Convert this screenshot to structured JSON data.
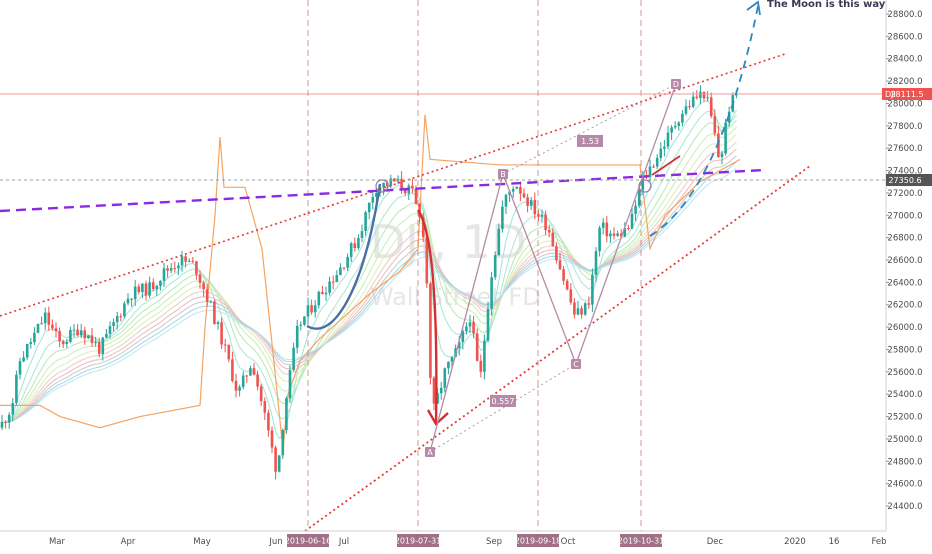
{
  "chart_data": {
    "type": "candlestick",
    "symbol": "DJI",
    "watermark_symbol": "DJI, 1D",
    "watermark_name": "Wall Street FD",
    "price_axis": {
      "min": 24300,
      "max": 28900,
      "ticks": [
        24400,
        24600,
        24800,
        25000,
        25200,
        25400,
        25600,
        25800,
        26000,
        26200,
        26400,
        26600,
        26800,
        27000,
        27200,
        27400,
        27600,
        27800,
        28000,
        28200,
        28400,
        28600,
        28800
      ],
      "last_price_label": "28111.5",
      "crosshair_price_label": "27350.6"
    },
    "time_axis": {
      "labels": [
        "Mar",
        "Apr",
        "May",
        "Jun",
        "Jul",
        "Sep",
        "Oct",
        "Dec",
        "2020",
        "16",
        "Feb"
      ],
      "highlighted_dates": [
        "2019-06-16",
        "2019-07-31",
        "2019-09-18",
        "2019-10-31"
      ]
    },
    "annotations": {
      "moon_text": "The Moon is this way! 🤪",
      "ratio_labels": [
        "1.53",
        "0.557"
      ],
      "pattern_points": [
        "A",
        "B",
        "C",
        "D"
      ]
    },
    "colors": {
      "up": "#26a69a",
      "down": "#ef5350",
      "accent_purple": "#8a2be2",
      "trend_red": "#d32f2f",
      "projection_blue": "#2e86c1",
      "vwap_orange": "#f4a460",
      "pattern": "#b48aa8",
      "last_price_bg": "#ef5350",
      "crosshair_bg": "#555555",
      "date_tag_bg": "#a07088"
    }
  }
}
